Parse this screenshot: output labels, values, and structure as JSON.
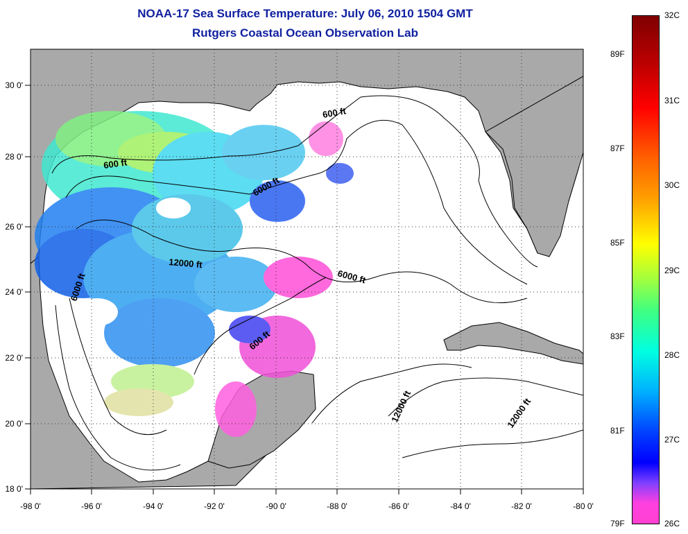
{
  "title": {
    "line1": "NOAA-17 Sea Surface Temperature:  July 06, 2010 1504 GMT",
    "line2": "Rutgers Coastal Ocean Observation Lab"
  },
  "map": {
    "region": "Gulf of Mexico",
    "lon_range": [
      -98,
      -80
    ],
    "lat_range": [
      18,
      31
    ],
    "x_ticks": [
      "-98 0'",
      "-96 0'",
      "-94 0'",
      "-92 0'",
      "-90 0'",
      "-88 0'",
      "-86 0'",
      "-84 0'",
      "-82 0'",
      "-80 0'"
    ],
    "y_ticks": [
      "30 0'",
      "28 0'",
      "26 0'",
      "24 0'",
      "22 0'",
      "20 0'",
      "18 0'"
    ],
    "land_color": "#a9a9a9",
    "ocean_color": "#ffffff",
    "grid": "dotted"
  },
  "contour_labels": [
    "600 ft",
    "6000 ft",
    "12000 ft",
    "6000 ft",
    "600 ft",
    "6000 ft",
    "600 ft",
    "12000 ft",
    "12000 ft"
  ],
  "colorbar": {
    "left_labels": [
      "89F",
      "87F",
      "85F",
      "83F",
      "81F",
      "79F"
    ],
    "right_labels": [
      "32C",
      "31C",
      "30C",
      "29C",
      "28C",
      "27C",
      "26C"
    ],
    "range_c": [
      26,
      32
    ],
    "colors": [
      "#7f0000",
      "#ff0000",
      "#ff8000",
      "#ffff00",
      "#00ff80",
      "#00ffff",
      "#0000ff",
      "#ff40e0"
    ]
  }
}
